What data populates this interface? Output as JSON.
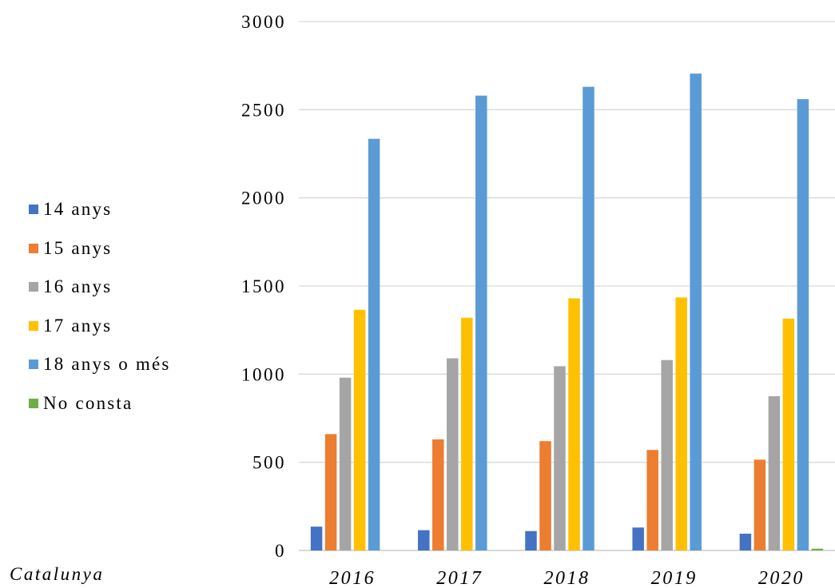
{
  "chart_data": {
    "type": "bar",
    "categories": [
      "2016",
      "2017",
      "2018",
      "2019",
      "2020"
    ],
    "series": [
      {
        "name": "14 anys",
        "color": "#4472C4",
        "values": [
          135,
          115,
          110,
          130,
          95
        ]
      },
      {
        "name": "15 anys",
        "color": "#ED7D31",
        "values": [
          660,
          630,
          620,
          570,
          515
        ]
      },
      {
        "name": "16 anys",
        "color": "#A5A5A5",
        "values": [
          980,
          1090,
          1045,
          1080,
          875
        ]
      },
      {
        "name": "17 anys",
        "color": "#FFC000",
        "values": [
          1365,
          1320,
          1430,
          1435,
          1315
        ]
      },
      {
        "name": "18 anys o més",
        "color": "#5B9BD5",
        "values": [
          2335,
          2580,
          2630,
          2705,
          2560
        ]
      },
      {
        "name": "No consta",
        "color": "#70AD47",
        "values": [
          0,
          0,
          0,
          0,
          10
        ]
      }
    ],
    "yticks": [
      "0",
      "500",
      "1000",
      "1500",
      "2000",
      "2500",
      "3000"
    ],
    "ylim": [
      0,
      3000
    ],
    "grid": true,
    "legend_position": "left"
  },
  "region_label": "Catalunya"
}
